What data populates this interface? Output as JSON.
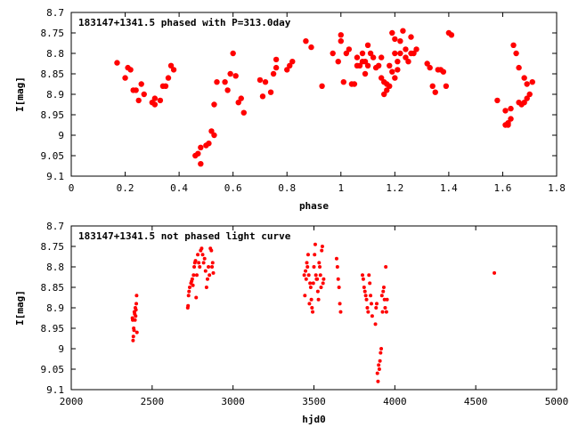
{
  "chart_data": [
    {
      "type": "scatter",
      "title": "183147+1341.5 phased with P=313.0day",
      "xlabel": "phase",
      "ylabel": "I[mag]",
      "xlim": [
        0,
        1.8
      ],
      "ylim": [
        9.1,
        8.7
      ],
      "y_inverted": true,
      "xticks": [
        0,
        0.2,
        0.4,
        0.6,
        0.8,
        1,
        1.2,
        1.4,
        1.6,
        1.8
      ],
      "yticks": [
        8.7,
        8.75,
        8.8,
        8.85,
        8.9,
        8.95,
        9,
        9.05,
        9.1
      ],
      "xtick_labels": [
        "0",
        "0.2",
        "0.4",
        "0.6",
        "0.8",
        "1",
        "1.2",
        "1.4",
        "1.6",
        "1.8"
      ],
      "ytick_labels": [
        "8.7",
        "8.75",
        "8.8",
        "8.85",
        "8.9",
        "8.95",
        "9",
        "9.05",
        "9.1"
      ],
      "marker": "filled-circle-large",
      "color": "#ff0000",
      "points": [
        [
          0.17,
          8.823
        ],
        [
          0.2,
          8.86
        ],
        [
          0.21,
          8.835
        ],
        [
          0.22,
          8.84
        ],
        [
          0.23,
          8.89
        ],
        [
          0.24,
          8.89
        ],
        [
          0.25,
          8.915
        ],
        [
          0.26,
          8.875
        ],
        [
          0.27,
          8.9
        ],
        [
          0.3,
          8.92
        ],
        [
          0.31,
          8.925
        ],
        [
          0.31,
          8.91
        ],
        [
          0.33,
          8.915
        ],
        [
          0.34,
          8.88
        ],
        [
          0.35,
          8.88
        ],
        [
          0.36,
          8.86
        ],
        [
          0.37,
          8.83
        ],
        [
          0.38,
          8.84
        ],
        [
          0.46,
          9.05
        ],
        [
          0.47,
          9.045
        ],
        [
          0.48,
          9.07
        ],
        [
          0.48,
          9.03
        ],
        [
          0.5,
          9.025
        ],
        [
          0.51,
          9.02
        ],
        [
          0.52,
          8.99
        ],
        [
          0.53,
          9.0
        ],
        [
          0.53,
          8.925
        ],
        [
          0.54,
          8.87
        ],
        [
          0.57,
          8.87
        ],
        [
          0.58,
          8.89
        ],
        [
          0.59,
          8.85
        ],
        [
          0.6,
          8.8
        ],
        [
          0.61,
          8.855
        ],
        [
          0.62,
          8.92
        ],
        [
          0.63,
          8.91
        ],
        [
          0.64,
          8.945
        ],
        [
          0.7,
          8.865
        ],
        [
          0.71,
          8.905
        ],
        [
          0.72,
          8.87
        ],
        [
          0.74,
          8.895
        ],
        [
          0.75,
          8.85
        ],
        [
          0.76,
          8.835
        ],
        [
          0.76,
          8.815
        ],
        [
          0.8,
          8.84
        ],
        [
          0.81,
          8.83
        ],
        [
          0.82,
          8.82
        ],
        [
          0.87,
          8.77
        ],
        [
          0.89,
          8.785
        ],
        [
          0.93,
          8.88
        ],
        [
          0.97,
          8.8
        ],
        [
          0.99,
          8.82
        ],
        [
          1.0,
          8.77
        ],
        [
          1.0,
          8.755
        ],
        [
          1.01,
          8.87
        ],
        [
          1.02,
          8.8
        ],
        [
          1.03,
          8.79
        ],
        [
          1.04,
          8.875
        ],
        [
          1.05,
          8.875
        ],
        [
          1.06,
          8.81
        ],
        [
          1.06,
          8.83
        ],
        [
          1.07,
          8.83
        ],
        [
          1.08,
          8.8
        ],
        [
          1.08,
          8.82
        ],
        [
          1.09,
          8.82
        ],
        [
          1.09,
          8.85
        ],
        [
          1.1,
          8.83
        ],
        [
          1.1,
          8.78
        ],
        [
          1.11,
          8.8
        ],
        [
          1.12,
          8.81
        ],
        [
          1.13,
          8.835
        ],
        [
          1.14,
          8.83
        ],
        [
          1.15,
          8.86
        ],
        [
          1.15,
          8.81
        ],
        [
          1.16,
          8.87
        ],
        [
          1.16,
          8.9
        ],
        [
          1.17,
          8.89
        ],
        [
          1.17,
          8.875
        ],
        [
          1.18,
          8.88
        ],
        [
          1.18,
          8.83
        ],
        [
          1.19,
          8.75
        ],
        [
          1.19,
          8.845
        ],
        [
          1.2,
          8.765
        ],
        [
          1.2,
          8.8
        ],
        [
          1.2,
          8.86
        ],
        [
          1.21,
          8.82
        ],
        [
          1.21,
          8.84
        ],
        [
          1.22,
          8.8
        ],
        [
          1.22,
          8.77
        ],
        [
          1.23,
          8.745
        ],
        [
          1.24,
          8.81
        ],
        [
          1.24,
          8.79
        ],
        [
          1.25,
          8.82
        ],
        [
          1.26,
          8.76
        ],
        [
          1.26,
          8.8
        ],
        [
          1.27,
          8.8
        ],
        [
          1.28,
          8.79
        ],
        [
          1.32,
          8.825
        ],
        [
          1.33,
          8.835
        ],
        [
          1.34,
          8.88
        ],
        [
          1.35,
          8.895
        ],
        [
          1.36,
          8.84
        ],
        [
          1.37,
          8.84
        ],
        [
          1.38,
          8.845
        ],
        [
          1.39,
          8.88
        ],
        [
          1.4,
          8.75
        ],
        [
          1.41,
          8.755
        ],
        [
          1.58,
          8.915
        ],
        [
          1.61,
          8.94
        ],
        [
          1.61,
          8.975
        ],
        [
          1.62,
          8.975
        ],
        [
          1.62,
          8.97
        ],
        [
          1.63,
          8.935
        ],
        [
          1.63,
          8.96
        ],
        [
          1.64,
          8.78
        ],
        [
          1.65,
          8.8
        ],
        [
          1.66,
          8.92
        ],
        [
          1.66,
          8.835
        ],
        [
          1.67,
          8.925
        ],
        [
          1.68,
          8.92
        ],
        [
          1.68,
          8.86
        ],
        [
          1.69,
          8.875
        ],
        [
          1.69,
          8.91
        ],
        [
          1.7,
          8.9
        ],
        [
          1.71,
          8.87
        ]
      ]
    },
    {
      "type": "scatter",
      "title": "183147+1341.5 not phased light curve",
      "xlabel": "hjd0",
      "ylabel": "I[mag]",
      "xlim": [
        2000,
        5000
      ],
      "ylim": [
        9.1,
        8.7
      ],
      "y_inverted": true,
      "xticks": [
        2000,
        2500,
        3000,
        3500,
        4000,
        4500,
        5000
      ],
      "yticks": [
        8.7,
        8.75,
        8.8,
        8.85,
        8.9,
        8.95,
        9,
        9.05,
        9.1
      ],
      "xtick_labels": [
        "2000",
        "2500",
        "3000",
        "3500",
        "4000",
        "4500",
        "5000"
      ],
      "ytick_labels": [
        "8.7",
        "8.75",
        "8.8",
        "8.85",
        "8.9",
        "8.95",
        "9",
        "9.05",
        "9.1"
      ],
      "marker": "filled-circle-small",
      "color": "#ff0000",
      "points": [
        [
          2378,
          8.925
        ],
        [
          2380,
          8.93
        ],
        [
          2382,
          8.98
        ],
        [
          2384,
          8.97
        ],
        [
          2386,
          8.95
        ],
        [
          2388,
          8.955
        ],
        [
          2390,
          8.91
        ],
        [
          2392,
          8.915
        ],
        [
          2394,
          8.93
        ],
        [
          2396,
          8.9
        ],
        [
          2398,
          8.92
        ],
        [
          2400,
          8.905
        ],
        [
          2402,
          8.89
        ],
        [
          2404,
          8.87
        ],
        [
          2406,
          8.96
        ],
        [
          2720,
          8.9
        ],
        [
          2722,
          8.895
        ],
        [
          2725,
          8.87
        ],
        [
          2728,
          8.86
        ],
        [
          2732,
          8.85
        ],
        [
          2740,
          8.84
        ],
        [
          2744,
          8.835
        ],
        [
          2748,
          8.83
        ],
        [
          2752,
          8.845
        ],
        [
          2756,
          8.82
        ],
        [
          2760,
          8.8
        ],
        [
          2764,
          8.79
        ],
        [
          2768,
          8.785
        ],
        [
          2772,
          8.875
        ],
        [
          2776,
          8.82
        ],
        [
          2782,
          8.77
        ],
        [
          2788,
          8.79
        ],
        [
          2794,
          8.8
        ],
        [
          2800,
          8.76
        ],
        [
          2806,
          8.755
        ],
        [
          2812,
          8.77
        ],
        [
          2818,
          8.79
        ],
        [
          2824,
          8.78
        ],
        [
          2830,
          8.81
        ],
        [
          2836,
          8.85
        ],
        [
          2842,
          8.83
        ],
        [
          2848,
          8.8
        ],
        [
          2854,
          8.82
        ],
        [
          2860,
          8.755
        ],
        [
          2866,
          8.76
        ],
        [
          2870,
          8.8
        ],
        [
          2874,
          8.79
        ],
        [
          2878,
          8.815
        ],
        [
          3440,
          8.82
        ],
        [
          3444,
          8.87
        ],
        [
          3448,
          8.81
        ],
        [
          3452,
          8.83
        ],
        [
          3456,
          8.79
        ],
        [
          3460,
          8.8
        ],
        [
          3464,
          8.77
        ],
        [
          3468,
          8.82
        ],
        [
          3472,
          8.89
        ],
        [
          3476,
          8.84
        ],
        [
          3480,
          8.85
        ],
        [
          3484,
          8.88
        ],
        [
          3488,
          8.9
        ],
        [
          3492,
          8.91
        ],
        [
          3496,
          8.84
        ],
        [
          3500,
          8.8
        ],
        [
          3504,
          8.77
        ],
        [
          3508,
          8.745
        ],
        [
          3512,
          8.82
        ],
        [
          3516,
          8.83
        ],
        [
          3520,
          8.83
        ],
        [
          3524,
          8.86
        ],
        [
          3528,
          8.88
        ],
        [
          3532,
          8.79
        ],
        [
          3536,
          8.8
        ],
        [
          3540,
          8.82
        ],
        [
          3544,
          8.85
        ],
        [
          3548,
          8.76
        ],
        [
          3552,
          8.75
        ],
        [
          3556,
          8.84
        ],
        [
          3560,
          8.83
        ],
        [
          3640,
          8.78
        ],
        [
          3645,
          8.8
        ],
        [
          3650,
          8.83
        ],
        [
          3655,
          8.85
        ],
        [
          3660,
          8.89
        ],
        [
          3665,
          8.91
        ],
        [
          3800,
          8.82
        ],
        [
          3805,
          8.83
        ],
        [
          3810,
          8.85
        ],
        [
          3815,
          8.86
        ],
        [
          3820,
          8.87
        ],
        [
          3825,
          8.88
        ],
        [
          3830,
          8.9
        ],
        [
          3835,
          8.91
        ],
        [
          3840,
          8.82
        ],
        [
          3845,
          8.84
        ],
        [
          3850,
          8.87
        ],
        [
          3855,
          8.89
        ],
        [
          3860,
          8.92
        ],
        [
          3880,
          8.94
        ],
        [
          3884,
          8.9
        ],
        [
          3888,
          8.89
        ],
        [
          3892,
          9.06
        ],
        [
          3896,
          9.08
        ],
        [
          3900,
          9.04
        ],
        [
          3904,
          9.05
        ],
        [
          3908,
          9.03
        ],
        [
          3912,
          9.01
        ],
        [
          3916,
          9.0
        ],
        [
          3920,
          8.87
        ],
        [
          3924,
          8.91
        ],
        [
          3928,
          8.86
        ],
        [
          3932,
          8.85
        ],
        [
          3936,
          8.88
        ],
        [
          3940,
          8.9
        ],
        [
          3944,
          8.8
        ],
        [
          3948,
          8.91
        ],
        [
          3952,
          8.88
        ],
        [
          4615,
          8.815
        ]
      ]
    }
  ]
}
